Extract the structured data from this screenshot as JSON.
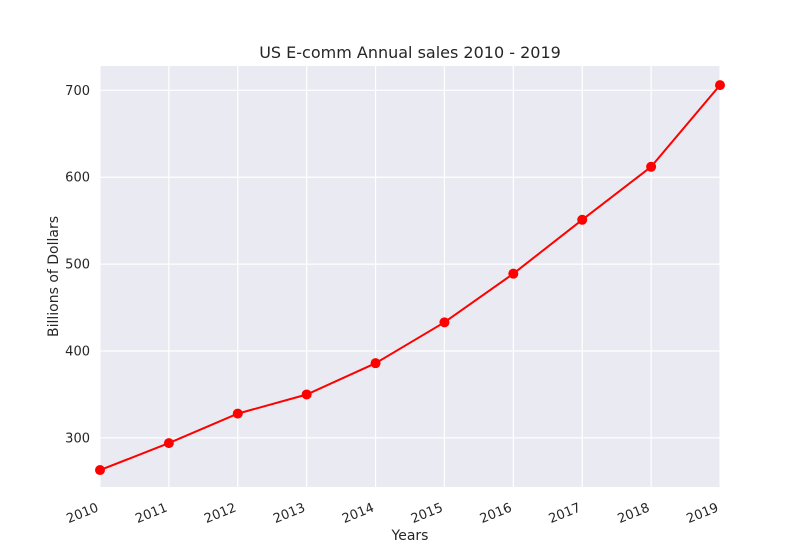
{
  "chart_data": {
    "type": "line",
    "title": "US E-comm Annual sales 2010 - 2019",
    "xlabel": "Years",
    "ylabel": "Billions of Dollars",
    "x": [
      "2010",
      "2011",
      "2012",
      "2013",
      "2014",
      "2015",
      "2016",
      "2017",
      "2018",
      "2019"
    ],
    "series": [
      {
        "values": [
          263,
          294,
          328,
          350,
          386,
          433,
          489,
          551,
          612,
          706
        ],
        "color": "#ff0000"
      }
    ],
    "yticks": [
      300,
      400,
      500,
      600,
      700
    ],
    "ylim": [
      243.5,
      728
    ],
    "grid": true,
    "background_color": "#eaeaf2",
    "grid_color": "#ffffff"
  }
}
